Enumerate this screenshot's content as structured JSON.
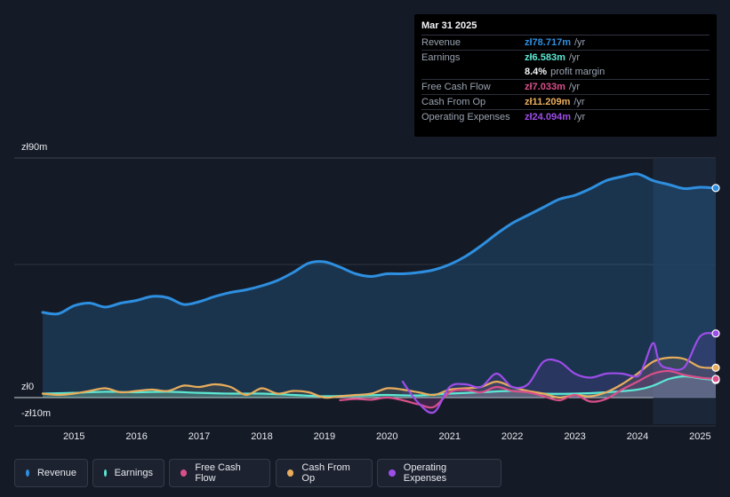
{
  "tooltip": {
    "date": "Mar 31 2025",
    "revenue_label": "Revenue",
    "revenue_value": "zł78.717m",
    "revenue_unit": "/yr",
    "earnings_label": "Earnings",
    "earnings_value": "zł6.583m",
    "earnings_unit": "/yr",
    "margin_value": "8.4%",
    "margin_label": "profit margin",
    "fcf_label": "Free Cash Flow",
    "fcf_value": "zł7.033m",
    "fcf_unit": "/yr",
    "cfo_label": "Cash From Op",
    "cfo_value": "zł11.209m",
    "cfo_unit": "/yr",
    "opex_label": "Operating Expenses",
    "opex_value": "zł24.094m",
    "opex_unit": "/yr"
  },
  "legend": {
    "revenue": "Revenue",
    "earnings": "Earnings",
    "fcf": "Free Cash Flow",
    "cfo": "Cash From Op",
    "opex": "Operating Expenses"
  },
  "colors": {
    "revenue": "#2e8fe0",
    "earnings": "#5ce8d4",
    "fcf": "#d94f8a",
    "cfo": "#e8ad5c",
    "opex": "#9d4de8"
  },
  "chart_data": {
    "type": "line",
    "title": "",
    "xlabel": "",
    "ylabel": "",
    "y_tick_labels": [
      "zł90m",
      "zł0",
      "-zł10m"
    ],
    "ylim": [
      -10,
      90
    ],
    "xlim": [
      2014.5,
      2025.25
    ],
    "x_tick_labels": [
      "2015",
      "2016",
      "2017",
      "2018",
      "2019",
      "2020",
      "2021",
      "2022",
      "2023",
      "2024",
      "2025"
    ],
    "x_ticks": [
      2015,
      2016,
      2017,
      2018,
      2019,
      2020,
      2021,
      2022,
      2023,
      2024,
      2025
    ],
    "highlight_from": 2024.25,
    "series": [
      {
        "key": "revenue",
        "name": "Revenue",
        "fill": true,
        "x": [
          2014.5,
          2014.75,
          2015.0,
          2015.25,
          2015.5,
          2015.75,
          2016.0,
          2016.25,
          2016.5,
          2016.75,
          2017.0,
          2017.25,
          2017.5,
          2017.75,
          2018.0,
          2018.25,
          2018.5,
          2018.75,
          2019.0,
          2019.25,
          2019.5,
          2019.75,
          2020.0,
          2020.25,
          2020.5,
          2020.75,
          2021.0,
          2021.25,
          2021.5,
          2021.75,
          2022.0,
          2022.25,
          2022.5,
          2022.75,
          2023.0,
          2023.25,
          2023.5,
          2023.75,
          2024.0,
          2024.25,
          2024.5,
          2024.75,
          2025.0,
          2025.25
        ],
        "values": [
          32,
          31.5,
          34.5,
          35.5,
          34,
          35.5,
          36.5,
          38,
          37.5,
          35,
          36,
          38,
          39.5,
          40.5,
          42,
          44,
          47,
          50.5,
          51,
          49,
          46.5,
          45.5,
          46.5,
          46.5,
          47,
          48,
          50,
          53,
          57,
          61.5,
          65.5,
          68.5,
          71.5,
          74.5,
          76,
          78.5,
          81.5,
          83,
          84,
          81.5,
          80,
          78.5,
          79,
          78.7
        ]
      },
      {
        "key": "earnings",
        "name": "Earnings",
        "fill": true,
        "x": [
          2014.5,
          2015.0,
          2015.5,
          2016.0,
          2016.5,
          2017.0,
          2017.5,
          2018.0,
          2018.5,
          2019.0,
          2019.5,
          2020.0,
          2020.5,
          2021.0,
          2021.5,
          2022.0,
          2022.5,
          2023.0,
          2023.5,
          2024.0,
          2024.25,
          2024.5,
          2024.75,
          2025.0,
          2025.25
        ],
        "values": [
          1.5,
          1.8,
          2.2,
          2,
          2.2,
          1.8,
          1.5,
          1.5,
          1,
          0.5,
          0.8,
          1,
          0.8,
          1.5,
          2,
          2.5,
          1.5,
          1.5,
          2,
          3,
          4.5,
          7,
          8,
          7.2,
          6.6
        ]
      },
      {
        "key": "fcf",
        "name": "Free Cash Flow",
        "fill": false,
        "x": [
          2019.25,
          2019.5,
          2019.75,
          2020.0,
          2020.25,
          2020.5,
          2020.75,
          2021.0,
          2021.25,
          2021.5,
          2021.75,
          2022.0,
          2022.25,
          2022.5,
          2022.75,
          2023.0,
          2023.25,
          2023.5,
          2023.75,
          2024.0,
          2024.25,
          2024.5,
          2024.75,
          2025.0,
          2025.25
        ],
        "values": [
          -1,
          -0.5,
          -0.8,
          0,
          -1,
          -2.5,
          -3.5,
          2,
          3,
          2,
          4,
          2.5,
          2,
          0.5,
          -1,
          1,
          -1.5,
          -0.5,
          3,
          6,
          9,
          10,
          8.5,
          7.5,
          7
        ]
      },
      {
        "key": "cfo",
        "name": "Cash From Op",
        "fill": false,
        "x": [
          2014.5,
          2014.75,
          2015.0,
          2015.25,
          2015.5,
          2015.75,
          2016.0,
          2016.25,
          2016.5,
          2016.75,
          2017.0,
          2017.25,
          2017.5,
          2017.75,
          2018.0,
          2018.25,
          2018.5,
          2018.75,
          2019.0,
          2019.25,
          2019.5,
          2019.75,
          2020.0,
          2020.25,
          2020.5,
          2020.75,
          2021.0,
          2021.25,
          2021.5,
          2021.75,
          2022.0,
          2022.25,
          2022.5,
          2022.75,
          2023.0,
          2023.25,
          2023.5,
          2023.75,
          2024.0,
          2024.25,
          2024.5,
          2024.75,
          2025.0,
          2025.25
        ],
        "values": [
          1.5,
          1,
          1.5,
          2.5,
          3.5,
          2,
          2.5,
          3,
          2.5,
          4.5,
          4,
          5,
          4,
          1,
          3.5,
          1.5,
          2.5,
          2,
          0,
          0.5,
          1,
          1.5,
          3.5,
          3,
          2,
          1,
          3,
          3.5,
          4,
          6,
          4,
          2.5,
          1.5,
          0,
          1,
          0.5,
          2,
          5,
          9,
          13.5,
          15,
          14.5,
          11.5,
          11.2
        ]
      },
      {
        "key": "opex",
        "name": "Operating Expenses",
        "fill": false,
        "x": [
          2020.25,
          2020.5,
          2020.75,
          2021.0,
          2021.25,
          2021.5,
          2021.75,
          2022.0,
          2022.25,
          2022.5,
          2022.75,
          2023.0,
          2023.25,
          2023.5,
          2023.75,
          2024.0,
          2024.1,
          2024.25,
          2024.35,
          2024.5,
          2024.75,
          2025.0,
          2025.25
        ],
        "values": [
          6,
          -2,
          -5.5,
          4,
          5,
          4,
          9,
          4,
          5,
          13.5,
          13.5,
          9,
          7.5,
          9,
          9,
          8,
          12,
          20.5,
          13,
          11,
          11.5,
          23,
          24.1
        ]
      }
    ]
  }
}
